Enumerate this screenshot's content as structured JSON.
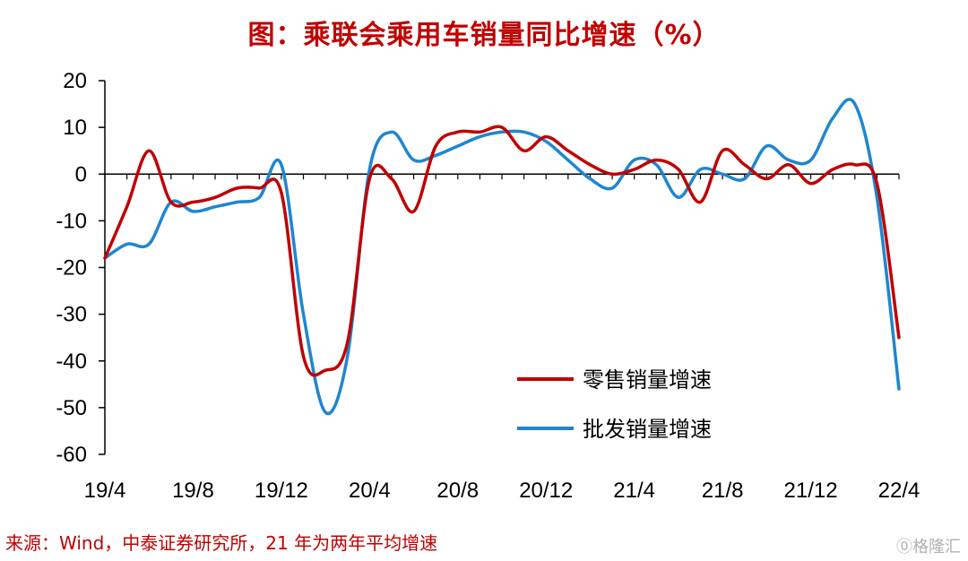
{
  "title": "图：乘联会乘用车销量同比增速（%）",
  "source": "来源：Wind，中泰证券研究所，21 年为两年平均增速",
  "watermark": "⓪格隆汇",
  "colors": {
    "retail": "#c00000",
    "wholesale": "#1f86cf",
    "title": "#c00000"
  },
  "chart_data": {
    "type": "line",
    "title": "图：乘联会乘用车销量同比增速（%）",
    "xlabel": "",
    "ylabel": "",
    "x_tick_labels": [
      "19/4",
      "19/8",
      "19/12",
      "20/4",
      "20/8",
      "20/12",
      "21/4",
      "21/8",
      "21/12",
      "22/4"
    ],
    "y_ticks": [
      20,
      10,
      0,
      -10,
      -20,
      -30,
      -40,
      -50,
      -60
    ],
    "ylim": [
      -60,
      20
    ],
    "grid": false,
    "legend_position": "lower-right",
    "x": [
      "19/4",
      "19/5",
      "19/6",
      "19/7",
      "19/8",
      "19/9",
      "19/10",
      "19/11",
      "19/12",
      "20/1",
      "20/2",
      "20/3",
      "20/4",
      "20/5",
      "20/6",
      "20/7",
      "20/8",
      "20/9",
      "20/10",
      "20/11",
      "20/12",
      "21/1",
      "21/2",
      "21/3",
      "21/4",
      "21/5",
      "21/6",
      "21/7",
      "21/8",
      "21/9",
      "21/10",
      "21/11",
      "21/12",
      "22/1",
      "22/2",
      "22/3",
      "22/4"
    ],
    "series": [
      {
        "name": "零售销量增速",
        "values": [
          -18,
          -7,
          5,
          -6,
          -6,
          -5,
          -3,
          -3,
          -4,
          -39,
          -42,
          -36,
          -1,
          -1,
          -8,
          6,
          9,
          9,
          10,
          5,
          8,
          5,
          2,
          0,
          1,
          3,
          1,
          -6,
          5,
          2,
          -1,
          2,
          -2,
          1,
          2,
          -2,
          -35
        ]
      },
      {
        "name": "批发销量增速",
        "values": [
          -18,
          -15,
          -15,
          -6,
          -8,
          -7,
          -6,
          -5,
          2,
          -30,
          -51,
          -39,
          1,
          9,
          3,
          4,
          6,
          8,
          9,
          9,
          7,
          3,
          -1,
          -3,
          3,
          2,
          -5,
          1,
          0,
          -1,
          6,
          3,
          3,
          12,
          15,
          -5,
          -46
        ]
      }
    ]
  }
}
